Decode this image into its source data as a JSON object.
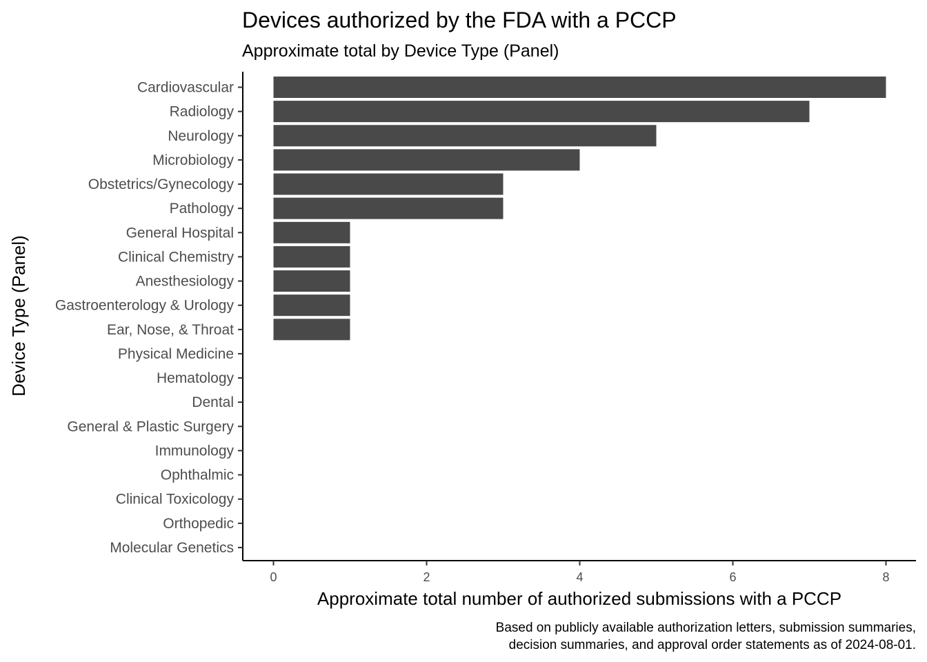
{
  "chart_data": {
    "type": "bar",
    "orientation": "horizontal",
    "title": "Devices authorized by the FDA with a PCCP",
    "subtitle": "Approximate total by Device Type (Panel)",
    "xlabel": "Approximate total number of authorized submissions with a PCCP",
    "ylabel": "Device Type (Panel)",
    "caption": [
      "Based on publicly available authorization letters, submission summaries,",
      "decision summaries, and approval order statements as of 2024-08-01."
    ],
    "categories": [
      "Cardiovascular",
      "Radiology",
      "Neurology",
      "Microbiology",
      "Obstetrics/Gynecology",
      "Pathology",
      "General Hospital",
      "Clinical Chemistry",
      "Anesthesiology",
      "Gastroenterology & Urology",
      "Ear, Nose, & Throat",
      "Physical Medicine",
      "Hematology",
      "Dental",
      "General & Plastic Surgery",
      "Immunology",
      "Ophthalmic",
      "Clinical Toxicology",
      "Orthopedic",
      "Molecular Genetics"
    ],
    "values": [
      8,
      7,
      5,
      4,
      3,
      3,
      1,
      1,
      1,
      1,
      1,
      0,
      0,
      0,
      0,
      0,
      0,
      0,
      0,
      0
    ],
    "xlim": [
      0,
      8
    ],
    "xticks": [
      0,
      2,
      4,
      6,
      8
    ],
    "grid": false,
    "bar_color": "#494949"
  }
}
